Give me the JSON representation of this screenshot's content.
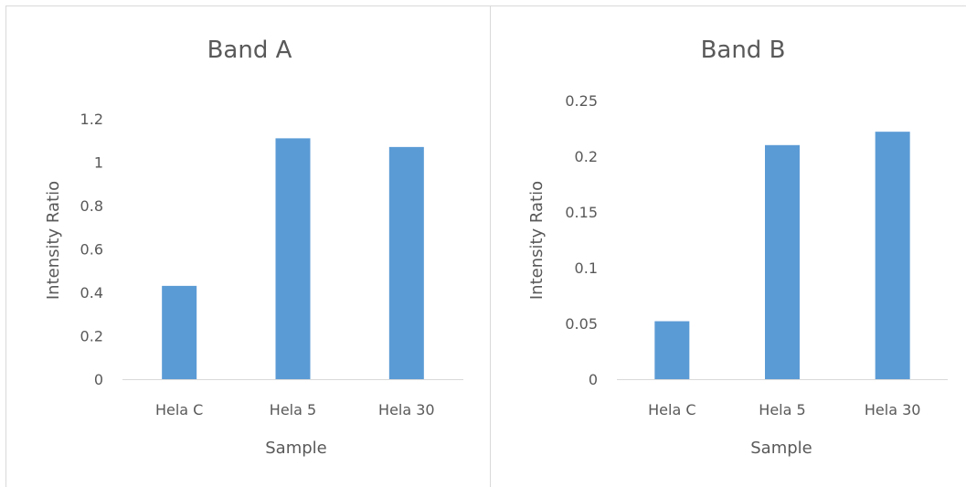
{
  "chart_data": [
    {
      "type": "bar",
      "title": "Band A",
      "xlabel": "Sample",
      "ylabel": "Intensity Ratio",
      "categories": [
        "Hela C",
        "Hela 5",
        "Hela 30"
      ],
      "values": [
        0.43,
        1.11,
        1.07
      ],
      "ylim": [
        0,
        1.2
      ],
      "yticks": [
        "0",
        "0.2",
        "0.4",
        "0.6",
        "0.8",
        "1",
        "1.2"
      ],
      "ytick_values": [
        0,
        0.2,
        0.4,
        0.6,
        0.8,
        1.0,
        1.2
      ],
      "grid": false,
      "legend": "none",
      "color": "#5b9bd5"
    },
    {
      "type": "bar",
      "title": "Band B",
      "xlabel": "Sample",
      "ylabel": "Intensity Ratio",
      "categories": [
        "Hela C",
        "Hela 5",
        "Hela 30"
      ],
      "values": [
        0.052,
        0.21,
        0.222
      ],
      "ylim": [
        0,
        0.25
      ],
      "yticks": [
        "0",
        "0.05",
        "0.1",
        "0.15",
        "0.2",
        "0.25"
      ],
      "ytick_values": [
        0,
        0.05,
        0.1,
        0.15,
        0.2,
        0.25
      ],
      "grid": false,
      "legend": "none",
      "color": "#5b9bd5"
    }
  ]
}
